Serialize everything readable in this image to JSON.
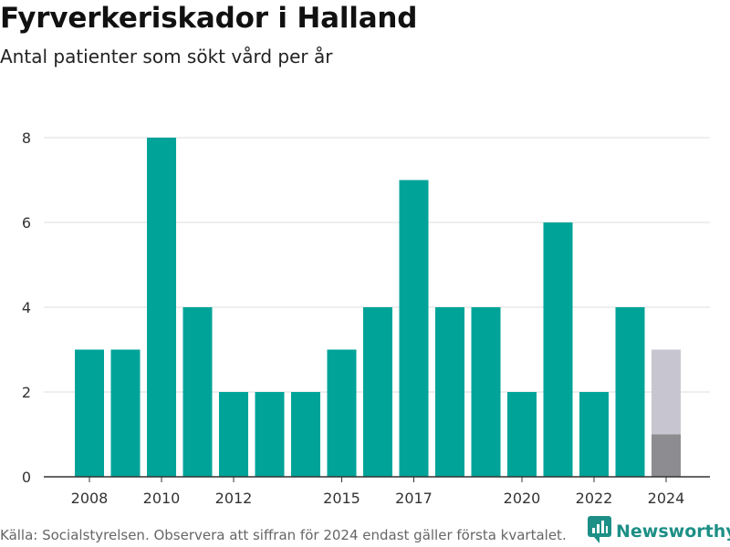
{
  "title": "Fyrverkeriskador i Halland",
  "subtitle": "Antal patienter som sökt vård per år",
  "footer": {
    "source_note": "Källa: Socialstyrelsen. Observera att siffran för 2024 endast gäller första kvartalet.",
    "brand_name": "Newsworthy"
  },
  "colors": {
    "bar": "#00a398",
    "partial_bar": "#8c8c91",
    "partial_bar_shadow": "#c7c6d0",
    "grid": "#dddddd",
    "axis": "#333333",
    "brand": "#1d8f86"
  },
  "chart_data": {
    "type": "bar",
    "title": "Fyrverkeriskador i Halland",
    "subtitle": "Antal patienter som sökt vård per år",
    "xlabel": "",
    "ylabel": "",
    "x": [
      2008,
      2009,
      2010,
      2011,
      2012,
      2013,
      2014,
      2015,
      2016,
      2017,
      2018,
      2019,
      2020,
      2021,
      2022,
      2023,
      2024
    ],
    "values": [
      3,
      3,
      8,
      4,
      2,
      2,
      2,
      3,
      4,
      7,
      4,
      4,
      2,
      6,
      2,
      4,
      1
    ],
    "comparison_bar": {
      "x": 2024,
      "value": 3
    },
    "x_tick_labels": [
      "2008",
      "2010",
      "2012",
      "2015",
      "2017",
      "2020",
      "2022",
      "2024"
    ],
    "y_ticks": [
      0,
      2,
      4,
      6,
      8
    ],
    "ylim": [
      0,
      8
    ],
    "grid": true
  }
}
